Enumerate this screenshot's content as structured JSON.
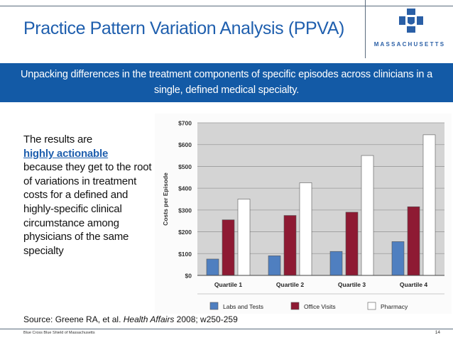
{
  "slide": {
    "title": "Practice Pattern Variation Analysis (PPVA)",
    "banner": "Unpacking differences in the treatment components of specific episodes across clinicians in a single, defined medical specialty.",
    "body_intro": "The results are",
    "body_highlight": "highly actionable",
    "body_rest": "because they get to the root of variations in treatment costs for a defined and highly-specific clinical circumstance among physicians of the same specialty",
    "source_prefix": "Source: Greene RA, et al. ",
    "source_journal": "Health Affairs",
    "source_suffix": " 2008; w250-259",
    "footer_org": "Blue Cross Blue Shield of Massachusetts",
    "page_number": "14",
    "logo_text": "MASSACHUSETTS",
    "colors": {
      "title": "#1f5fae",
      "banner_bg": "#135aa6"
    }
  },
  "chart_data": {
    "type": "bar",
    "ylabel": "Costs per Episode",
    "ylim": [
      0,
      700
    ],
    "yticks": [
      "$0",
      "$100",
      "$200",
      "$300",
      "$400",
      "$500",
      "$600",
      "$700"
    ],
    "categories": [
      "Quartile 1",
      "Quartile 2",
      "Quartile 3",
      "Quartile 4"
    ],
    "series": [
      {
        "name": "Labs and Tests",
        "color": "#4f7fc0",
        "values": [
          75,
          90,
          110,
          155
        ]
      },
      {
        "name": "Office Visits",
        "color": "#8e1a33",
        "values": [
          255,
          275,
          290,
          315
        ]
      },
      {
        "name": "Pharmacy",
        "color": "#ffffff",
        "values": [
          350,
          425,
          550,
          645
        ]
      }
    ],
    "grid": true,
    "legend": "bottom"
  }
}
